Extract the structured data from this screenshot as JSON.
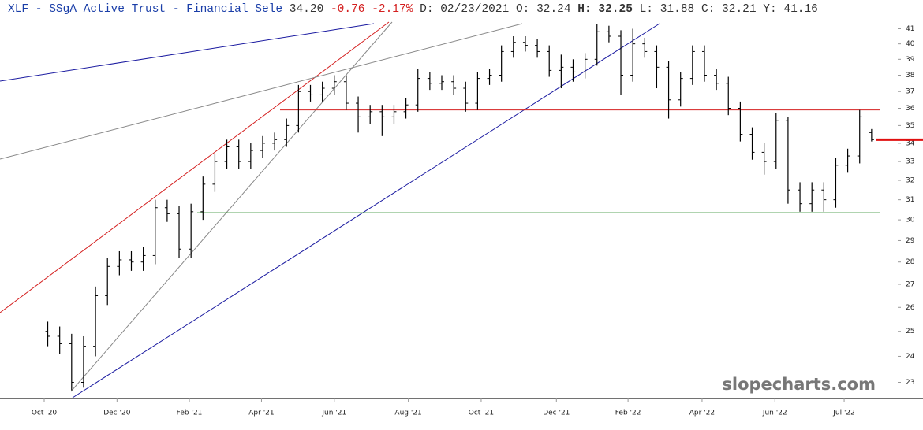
{
  "chart_data": {
    "type": "ohlc",
    "header": {
      "title": "XLF - SSgA Active Trust - Financial Sele",
      "last": "34.20",
      "change": "-0.76",
      "change_pct": "-2.17%",
      "items": [
        {
          "label": "D:",
          "value": "02/23/2021"
        },
        {
          "label": "O:",
          "value": "32.24"
        },
        {
          "label": "H:",
          "value": "32.25"
        },
        {
          "label": "L:",
          "value": "31.88"
        },
        {
          "label": "C:",
          "value": "32.21"
        },
        {
          "label": "Y:",
          "value": "41.16"
        }
      ]
    },
    "watermark": "slopecharts.com",
    "x": [
      0,
      1,
      2,
      3,
      4,
      5,
      6,
      7,
      8,
      9,
      10,
      11,
      12,
      13,
      14,
      15,
      16,
      17,
      18,
      19,
      20,
      21,
      22,
      23,
      24,
      25,
      26,
      27,
      28,
      29,
      30,
      31,
      32,
      33,
      34,
      35,
      36,
      37,
      38,
      39,
      40,
      41,
      42,
      43,
      44,
      45,
      46,
      47,
      48,
      49,
      50,
      51,
      52,
      53,
      54,
      55,
      56,
      57,
      58,
      59,
      60,
      61,
      62,
      63,
      64,
      65,
      66,
      67,
      68,
      69
    ],
    "open": [
      25.0,
      24.8,
      24.5,
      23.0,
      24.4,
      26.5,
      27.8,
      28.1,
      28.0,
      28.3,
      30.6,
      30.3,
      28.6,
      30.4,
      31.8,
      33.0,
      33.8,
      33.0,
      33.6,
      34.0,
      34.2,
      35.0,
      37.0,
      36.8,
      37.2,
      37.6,
      36.3,
      35.5,
      35.8,
      35.5,
      35.8,
      36.2,
      37.8,
      37.5,
      37.6,
      37.2,
      36.3,
      37.8,
      38.0,
      39.5,
      40.1,
      39.9,
      39.5,
      38.3,
      38.5,
      38.2,
      39.0,
      40.8,
      40.5,
      38.0,
      40.0,
      39.5,
      38.5,
      36.5,
      37.8,
      39.5,
      38.0,
      37.5,
      36.0,
      34.5,
      33.5,
      33.0,
      35.3,
      31.5,
      30.8,
      31.5,
      31.0,
      32.8,
      33.3,
      34.6
    ],
    "high": [
      25.4,
      25.2,
      24.9,
      24.8,
      26.9,
      28.2,
      28.5,
      28.5,
      28.7,
      31.0,
      31.0,
      30.7,
      30.8,
      32.2,
      33.4,
      34.2,
      34.2,
      34.0,
      34.4,
      34.6,
      35.4,
      37.4,
      37.4,
      37.6,
      38.0,
      38.0,
      36.7,
      36.2,
      36.2,
      36.2,
      36.6,
      38.4,
      38.2,
      38.0,
      38.0,
      37.6,
      38.2,
      38.4,
      39.9,
      40.5,
      40.5,
      40.3,
      39.9,
      39.3,
      39.0,
      39.4,
      41.3,
      41.2,
      40.9,
      41.0,
      40.4,
      39.9,
      38.9,
      38.2,
      39.9,
      39.9,
      38.4,
      37.9,
      36.4,
      34.9,
      34.0,
      35.7,
      35.5,
      31.9,
      31.9,
      31.9,
      33.2,
      33.7,
      35.9,
      34.8
    ],
    "low": [
      24.4,
      24.1,
      22.7,
      22.8,
      24.0,
      26.1,
      27.4,
      27.6,
      27.6,
      27.9,
      29.9,
      28.2,
      28.2,
      30.0,
      31.4,
      32.6,
      32.6,
      32.6,
      33.2,
      33.6,
      33.8,
      34.6,
      36.4,
      36.4,
      36.8,
      35.9,
      34.6,
      35.1,
      34.4,
      35.1,
      35.4,
      35.8,
      37.1,
      37.1,
      36.8,
      35.8,
      35.9,
      37.4,
      37.6,
      39.1,
      39.5,
      39.1,
      37.9,
      37.2,
      37.6,
      37.8,
      38.6,
      40.1,
      36.8,
      37.6,
      39.1,
      37.2,
      35.4,
      36.1,
      37.4,
      37.6,
      37.1,
      35.6,
      34.1,
      33.1,
      32.3,
      32.6,
      30.8,
      30.4,
      30.4,
      30.4,
      30.6,
      32.4,
      32.9,
      34.1
    ],
    "close": [
      24.8,
      24.5,
      23.0,
      24.4,
      26.5,
      27.8,
      28.1,
      28.0,
      28.3,
      30.6,
      30.3,
      28.6,
      30.4,
      31.8,
      33.0,
      33.8,
      33.0,
      33.6,
      34.0,
      34.2,
      35.0,
      37.0,
      36.8,
      37.2,
      37.6,
      36.3,
      35.5,
      35.8,
      35.5,
      35.8,
      36.2,
      37.8,
      37.5,
      37.6,
      37.2,
      36.3,
      37.8,
      38.0,
      39.5,
      40.1,
      39.9,
      39.5,
      38.3,
      38.5,
      38.2,
      39.0,
      40.8,
      40.5,
      38.0,
      40.0,
      39.5,
      38.5,
      36.5,
      37.8,
      39.5,
      38.0,
      37.5,
      36.0,
      34.5,
      33.5,
      33.0,
      35.3,
      31.5,
      30.8,
      31.5,
      31.0,
      32.8,
      33.3,
      35.5,
      34.2
    ],
    "color": "#000000",
    "xlim": [
      -4,
      70
    ],
    "xticks": [
      {
        "value": -0.3,
        "label": "Oct '20"
      },
      {
        "value": 5.8,
        "label": "Dec '20"
      },
      {
        "value": 11.86,
        "label": "Feb '21"
      },
      {
        "value": 17.9,
        "label": "Apr '21"
      },
      {
        "value": 24.0,
        "label": "Jun '21"
      },
      {
        "value": 30.2,
        "label": "Aug '21"
      },
      {
        "value": 36.3,
        "label": "Oct '21"
      },
      {
        "value": 42.6,
        "label": "Dec '21"
      },
      {
        "value": 48.6,
        "label": "Feb '22"
      },
      {
        "value": 54.8,
        "label": "Apr '22"
      },
      {
        "value": 60.9,
        "label": "Jun '22"
      },
      {
        "value": 66.7,
        "label": "Jul '22"
      }
    ],
    "ylim": [
      22.43,
      41.45
    ],
    "log_scale": true,
    "yticks": [
      23,
      24,
      25,
      26,
      27,
      28,
      29,
      30,
      31,
      32,
      33,
      34,
      35,
      36,
      37,
      38,
      39,
      40,
      41
    ],
    "hlines": [
      {
        "value": 35.9,
        "color": "#d42020"
      },
      {
        "value": 30.35,
        "color": "#2e8b2e"
      }
    ],
    "price_marker": {
      "value": 34.2,
      "color": "#e01010"
    }
  }
}
